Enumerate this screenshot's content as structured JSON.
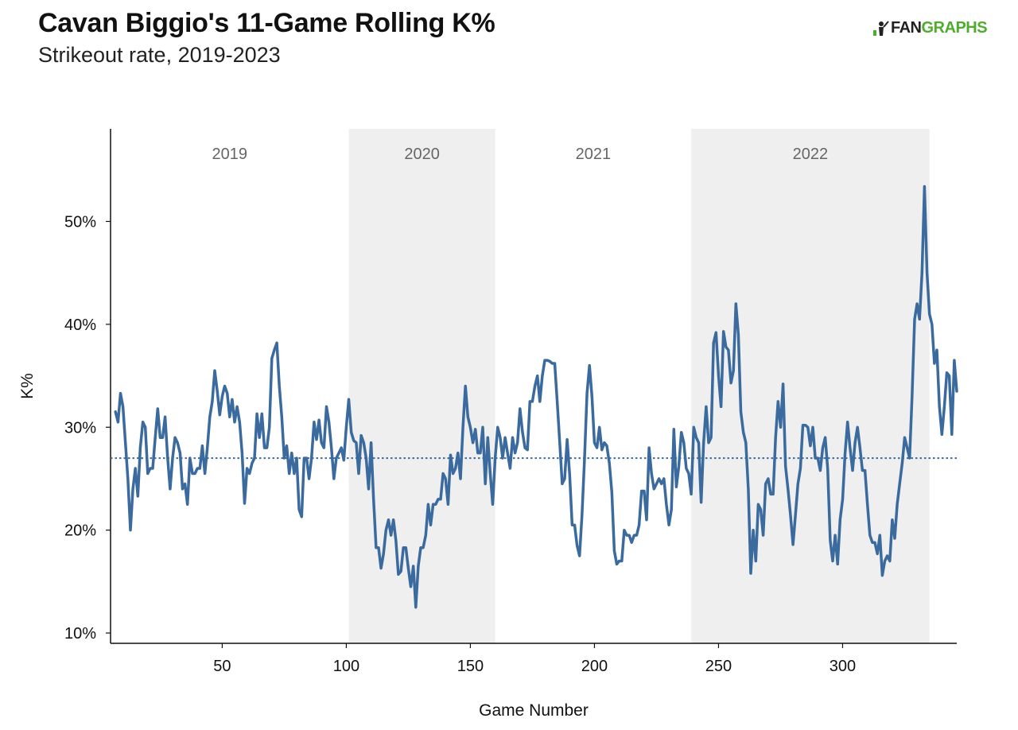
{
  "header": {
    "title": "Cavan Biggio's 11-Game Rolling K%",
    "subtitle": "Strikeout rate, 2019-2023",
    "logo_left": "FAN",
    "logo_right": "GRAPHS"
  },
  "colors": {
    "line": "#3a6a9e",
    "band": "#efefef",
    "axis": "#111111",
    "reference": "#3a6a9e",
    "logo_green": "#4fac2f"
  },
  "chart_data": {
    "type": "line",
    "title": "Cavan Biggio's 11-Game Rolling K%",
    "subtitle": "Strikeout rate, 2019-2023",
    "xlabel": "Game Number",
    "ylabel": "K%",
    "xlim": [
      5,
      346
    ],
    "ylim": [
      9,
      59
    ],
    "xticks": [
      50,
      100,
      150,
      200,
      250,
      300
    ],
    "yticks": [
      10,
      20,
      30,
      40,
      50
    ],
    "ytick_labels": [
      "10%",
      "20%",
      "30%",
      "40%",
      "50%"
    ],
    "reference_line": {
      "value": 27,
      "style": "dotted"
    },
    "seasons": [
      {
        "label": "2019",
        "start": 5,
        "end": 101,
        "shaded": false
      },
      {
        "label": "2020",
        "start": 101,
        "end": 160,
        "shaded": true
      },
      {
        "label": "2021",
        "start": 160,
        "end": 239,
        "shaded": false
      },
      {
        "label": "2022",
        "start": 239,
        "end": 335,
        "shaded": true
      }
    ],
    "series": [
      {
        "name": "11-Game Rolling K%",
        "x": [
          7,
          8,
          9,
          10,
          11,
          12,
          13,
          14,
          15,
          16,
          17,
          18,
          19,
          20,
          21,
          22,
          23,
          24,
          25,
          26,
          27,
          28,
          29,
          30,
          31,
          32,
          33,
          34,
          35,
          36,
          37,
          38,
          39,
          40,
          41,
          42,
          43,
          44,
          45,
          46,
          47,
          48,
          49,
          50,
          51,
          52,
          53,
          54,
          55,
          56,
          57,
          58,
          59,
          60,
          61,
          62,
          63,
          64,
          65,
          66,
          67,
          68,
          69,
          70,
          71,
          72,
          73,
          74,
          75,
          76,
          77,
          78,
          79,
          80,
          81,
          82,
          83,
          84,
          85,
          86,
          87,
          88,
          89,
          90,
          91,
          92,
          93,
          94,
          95,
          96,
          97,
          98,
          99,
          100,
          101,
          102,
          103,
          104,
          105,
          106,
          107,
          108,
          109,
          110,
          111,
          112,
          113,
          114,
          115,
          116,
          117,
          118,
          119,
          120,
          121,
          122,
          123,
          124,
          125,
          126,
          127,
          128,
          129,
          130,
          131,
          132,
          133,
          134,
          135,
          136,
          137,
          138,
          139,
          140,
          141,
          142,
          143,
          144,
          145,
          146,
          147,
          148,
          149,
          150,
          151,
          152,
          153,
          154,
          155,
          156,
          157,
          158,
          159,
          160,
          161,
          162,
          163,
          164,
          165,
          166,
          167,
          168,
          169,
          170,
          171,
          172,
          173,
          174,
          175,
          176,
          177,
          178,
          179,
          180,
          181,
          182,
          183,
          184,
          185,
          186,
          187,
          188,
          189,
          190,
          191,
          192,
          193,
          194,
          195,
          196,
          197,
          198,
          199,
          200,
          201,
          202,
          203,
          204,
          205,
          206,
          207,
          208,
          209,
          210,
          211,
          212,
          213,
          214,
          215,
          216,
          217,
          218,
          219,
          220,
          221,
          222,
          223,
          224,
          225,
          226,
          227,
          228,
          229,
          230,
          231,
          232,
          233,
          234,
          235,
          236,
          237,
          238,
          239,
          240,
          241,
          242,
          243,
          244,
          245,
          246,
          247,
          248,
          249,
          250,
          251,
          252,
          253,
          254,
          255,
          256,
          257,
          258,
          259,
          260,
          261,
          262,
          263,
          264,
          265,
          266,
          267,
          268,
          269,
          270,
          271,
          272,
          273,
          274,
          275,
          276,
          277,
          278,
          279,
          280,
          281,
          282,
          283,
          284,
          285,
          286,
          287,
          288,
          289,
          290,
          291,
          292,
          293,
          294,
          295,
          296,
          297,
          298,
          299,
          300,
          301,
          302,
          303,
          304,
          305,
          306,
          307,
          308,
          309,
          310,
          311,
          312,
          313,
          314,
          315,
          316,
          317,
          318,
          319,
          320,
          321,
          322,
          323,
          324,
          325,
          326,
          327,
          328,
          329,
          330,
          331,
          332,
          333,
          334,
          335,
          336,
          337,
          338,
          339,
          340,
          341,
          342,
          343,
          344,
          345,
          346
        ],
        "y": [
          31.5,
          30.5,
          33.3,
          32.0,
          28.5,
          25.0,
          20.0,
          24.0,
          26.0,
          23.3,
          28.0,
          30.5,
          30.0,
          25.5,
          26.0,
          26.0,
          29.0,
          31.8,
          29.0,
          29.0,
          31.0,
          27.0,
          24.0,
          27.0,
          29.0,
          28.5,
          27.5,
          24.0,
          24.5,
          22.5,
          27.0,
          25.5,
          25.5,
          26.0,
          26.0,
          28.2,
          25.5,
          28.0,
          31.0,
          32.5,
          35.5,
          33.5,
          31.2,
          33.0,
          34.0,
          33.3,
          31.0,
          32.7,
          30.5,
          32.0,
          30.5,
          27.5,
          22.6,
          26.0,
          25.5,
          26.5,
          27.0,
          31.3,
          29.0,
          31.3,
          28.0,
          28.0,
          30.0,
          36.7,
          37.5,
          38.2,
          34.0,
          31.0,
          27.0,
          28.2,
          25.5,
          27.5,
          25.5,
          27.0,
          22.0,
          21.3,
          27.0,
          27.0,
          25.0,
          27.0,
          30.5,
          28.8,
          30.7,
          28.5,
          28.0,
          32.0,
          30.5,
          28.0,
          25.0,
          27.0,
          27.5,
          28.0,
          26.8,
          30.0,
          32.7,
          29.5,
          28.7,
          28.5,
          25.5,
          29.2,
          28.5,
          27.0,
          24.0,
          28.5,
          23.0,
          18.3,
          18.3,
          16.3,
          17.7,
          20.0,
          21.0,
          19.5,
          21.0,
          19.0,
          15.7,
          16.0,
          18.3,
          18.3,
          16.3,
          14.5,
          16.5,
          12.5,
          16.5,
          18.3,
          18.3,
          19.5,
          22.5,
          20.5,
          22.5,
          22.5,
          23.0,
          23.0,
          25.5,
          25.0,
          22.5,
          27.3,
          25.5,
          26.0,
          27.5,
          25.0,
          30.0,
          34.0,
          31.0,
          30.0,
          28.5,
          29.8,
          27.5,
          27.5,
          30.0,
          24.5,
          29.0,
          25.5,
          22.5,
          27.0,
          30.0,
          29.0,
          27.0,
          29.0,
          27.5,
          26.0,
          29.0,
          27.5,
          28.5,
          31.8,
          29.5,
          28.0,
          27.8,
          32.5,
          32.5,
          34.0,
          35.0,
          32.5,
          35.0,
          36.5,
          36.5,
          36.4,
          36.2,
          36.2,
          32.5,
          28.5,
          24.5,
          25.0,
          28.8,
          25.5,
          20.5,
          20.5,
          18.5,
          17.5,
          21.5,
          27.0,
          33.3,
          36.0,
          33.0,
          28.5,
          28.0,
          30.0,
          27.8,
          28.5,
          28.2,
          26.5,
          23.7,
          18.0,
          16.7,
          17.0,
          17.0,
          20.0,
          19.5,
          19.5,
          18.8,
          19.5,
          19.5,
          20.5,
          23.8,
          23.8,
          21.0,
          28.0,
          25.5,
          24.0,
          24.5,
          25.0,
          24.5,
          25.0,
          22.5,
          20.5,
          22.0,
          29.8,
          24.2,
          26.2,
          29.5,
          28.5,
          26.0,
          25.5,
          23.5,
          30.0,
          29.0,
          28.5,
          22.7,
          28.5,
          32.0,
          28.5,
          29.0,
          38.2,
          39.2,
          35.0,
          32.0,
          39.3,
          37.8,
          37.5,
          34.3,
          35.5,
          42.0,
          39.0,
          31.5,
          29.5,
          28.5,
          24.0,
          15.8,
          20.0,
          17.0,
          22.5,
          22.0,
          19.5,
          24.5,
          25.0,
          23.5,
          23.5,
          29.0,
          32.5,
          30.0,
          34.2,
          26.2,
          24.0,
          21.5,
          18.6,
          21.5,
          24.5,
          26.0,
          30.2,
          30.2,
          30.0,
          28.2,
          30.0,
          27.0,
          27.0,
          25.8,
          28.0,
          29.0,
          26.0,
          19.0,
          17.0,
          19.5,
          16.7,
          21.0,
          23.0,
          27.5,
          30.5,
          28.0,
          25.8,
          28.5,
          30.0,
          28.0,
          25.8,
          25.8,
          22.5,
          19.5,
          18.8,
          18.8,
          17.7,
          19.5,
          15.6,
          17.0,
          17.5,
          17.0,
          21.0,
          19.2,
          22.5,
          24.5,
          26.5,
          29.0,
          28.0,
          27.0,
          33.0,
          40.5,
          42.0,
          40.5,
          45.0,
          53.4,
          45.0,
          41.0,
          40.0,
          36.2,
          37.5,
          32.0,
          29.3,
          32.0,
          35.3,
          35.0,
          29.3,
          36.5,
          33.5
        ]
      }
    ]
  }
}
